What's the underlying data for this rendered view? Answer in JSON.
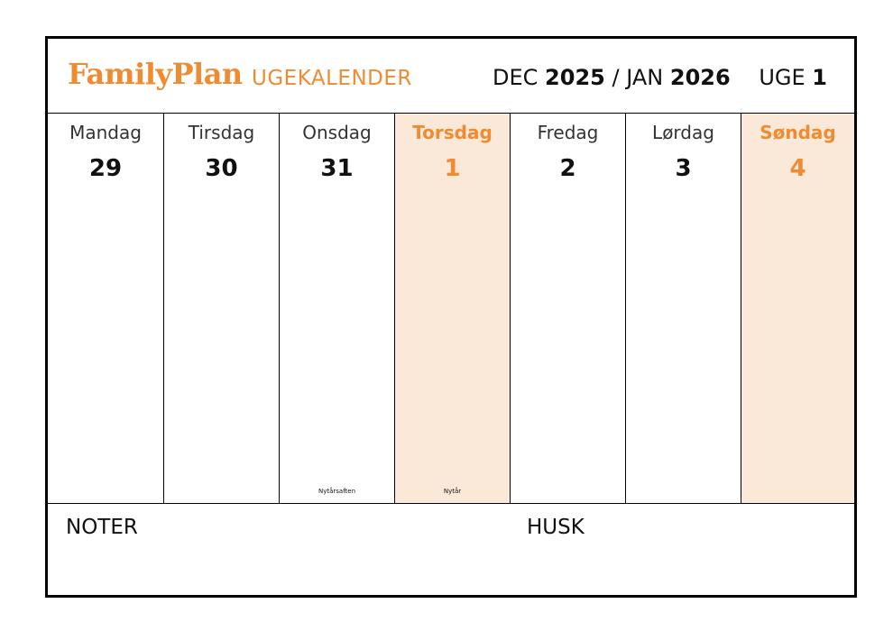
{
  "header": {
    "brand": "FamilyPlan",
    "subtitle": "UGEKALENDER",
    "month1": "DEC",
    "year1": "2025",
    "separator": "/",
    "month2": "JAN",
    "year2": "2026",
    "week_label": "UGE",
    "week_number": "1"
  },
  "days": [
    {
      "name": "Mandag",
      "number": "29",
      "holiday": ""
    },
    {
      "name": "Tirsdag",
      "number": "30",
      "holiday": ""
    },
    {
      "name": "Onsdag",
      "number": "31",
      "holiday": "Nytårsaften"
    },
    {
      "name": "Torsdag",
      "number": "1",
      "holiday": "Nytår"
    },
    {
      "name": "Fredag",
      "number": "2",
      "holiday": ""
    },
    {
      "name": "Lørdag",
      "number": "3",
      "holiday": ""
    },
    {
      "name": "Søndag",
      "number": "4",
      "holiday": ""
    }
  ],
  "footer": {
    "notes_label": "NOTER",
    "remember_label": "HUSK"
  },
  "colors": {
    "accent": "#ef8c32",
    "highlight_bg": "#fae8d8",
    "border": "#000000"
  }
}
